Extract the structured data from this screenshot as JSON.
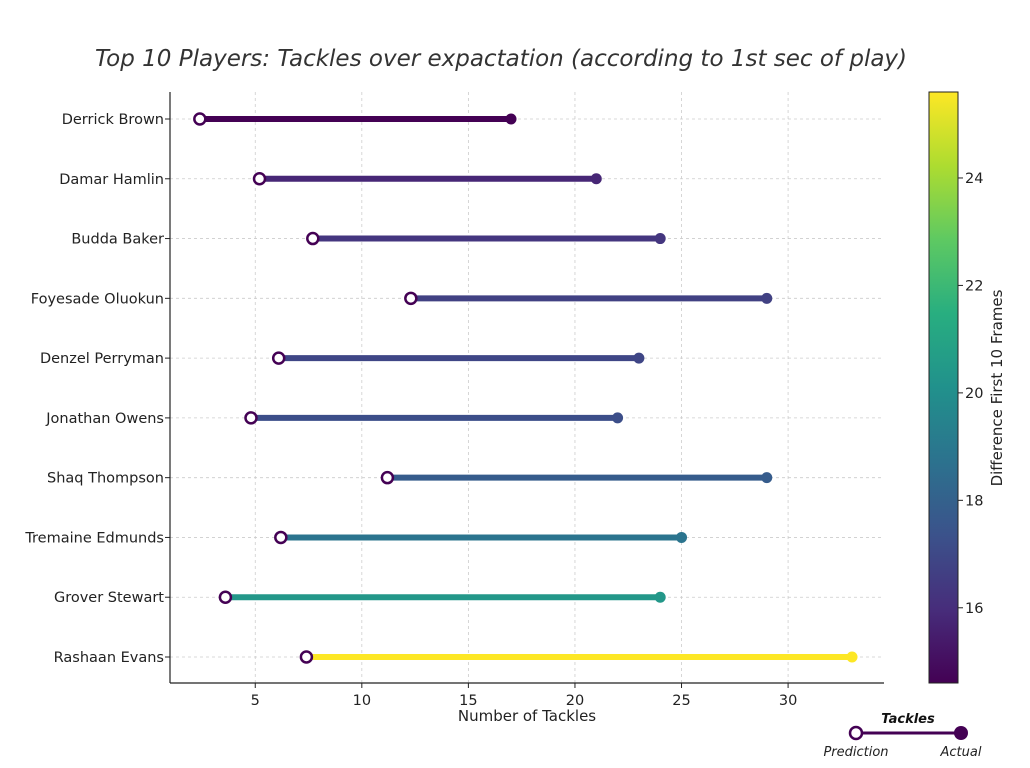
{
  "chart_data": {
    "type": "dumbbell",
    "title": "Top 10 Players: Tackles over expactation (according to 1st sec of play)",
    "xlabel": "Number of Tackles",
    "ylabel": "",
    "xlim": [
      1,
      34.5
    ],
    "xticks": [
      5,
      10,
      15,
      20,
      25,
      30
    ],
    "grid": true,
    "players": [
      {
        "name": "Derrick Brown",
        "prediction": 2.4,
        "actual": 17,
        "difference": 14.6
      },
      {
        "name": "Damar Hamlin",
        "prediction": 5.2,
        "actual": 21,
        "difference": 15.8
      },
      {
        "name": "Budda Baker",
        "prediction": 7.7,
        "actual": 24,
        "difference": 16.3
      },
      {
        "name": "Foyesade Oluokun",
        "prediction": 12.3,
        "actual": 29,
        "difference": 16.7
      },
      {
        "name": "Denzel Perryman",
        "prediction": 6.1,
        "actual": 23,
        "difference": 16.9
      },
      {
        "name": "Jonathan Owens",
        "prediction": 4.8,
        "actual": 22,
        "difference": 17.2
      },
      {
        "name": "Shaq Thompson",
        "prediction": 11.2,
        "actual": 29,
        "difference": 17.8
      },
      {
        "name": "Tremaine Edmunds",
        "prediction": 6.2,
        "actual": 25,
        "difference": 18.8
      },
      {
        "name": "Grover Stewart",
        "prediction": 3.6,
        "actual": 24,
        "difference": 20.4
      },
      {
        "name": "Rashaan Evans",
        "prediction": 7.4,
        "actual": 33,
        "difference": 25.6
      }
    ],
    "colorbar": {
      "label": "Difference First 10 Frames",
      "colormap": "viridis",
      "range": [
        14.6,
        25.6
      ],
      "ticks": [
        16,
        18,
        20,
        22,
        24
      ]
    },
    "legend": {
      "title": "Tackles",
      "prediction_label": "Prediction",
      "actual_label": "Actual",
      "position": "bottom-right",
      "color": "#440154"
    }
  }
}
